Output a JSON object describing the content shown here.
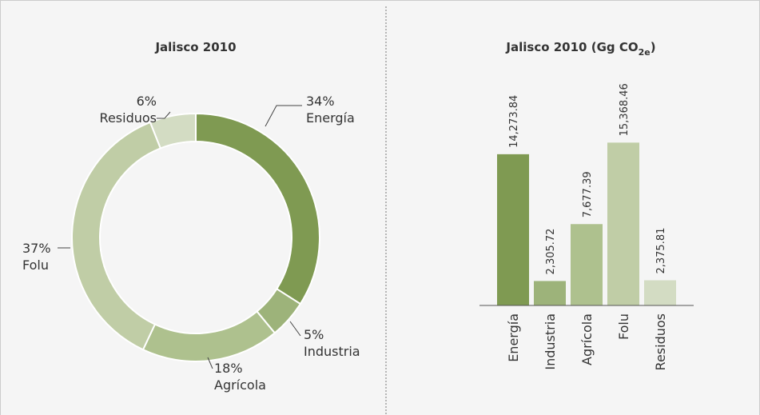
{
  "chart_data": [
    {
      "type": "donut",
      "title": "Jalisco 2010",
      "categories": [
        "Energía",
        "Industria",
        "Agrícola",
        "Folu",
        "Residuos"
      ],
      "values": [
        34,
        5,
        18,
        37,
        6
      ],
      "value_labels": [
        "34%",
        "5%",
        "18%",
        "37%",
        "6%"
      ],
      "colors": [
        "#7f9a52",
        "#9db37a",
        "#aec18e",
        "#c0cda6",
        "#d3dcc3"
      ]
    },
    {
      "type": "bar",
      "title": "Jalisco 2010 (Gg CO",
      "title_sub": "2e",
      "title_end": ")",
      "categories": [
        "Energía",
        "Industria",
        "Agrícola",
        "Folu",
        "Residuos"
      ],
      "values": [
        14273.84,
        2305.72,
        7677.39,
        15368.46,
        2375.81
      ],
      "value_labels": [
        "14,273.84",
        "2,305.72",
        "7,677.39",
        "15,368.46",
        "2,375.81"
      ],
      "colors": [
        "#7f9a52",
        "#9db37a",
        "#aec18e",
        "#c0cda6",
        "#d3dcc3"
      ],
      "ylim": [
        0,
        20000
      ]
    }
  ]
}
